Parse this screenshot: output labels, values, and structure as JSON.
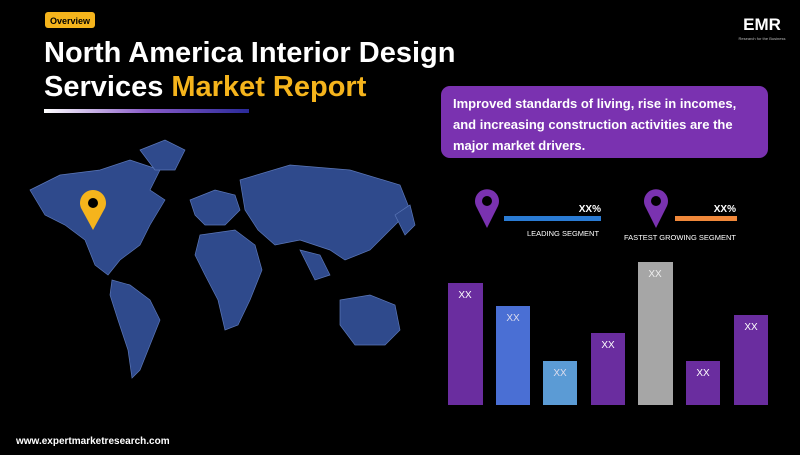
{
  "header": {
    "badge": "Overview",
    "title_line1": "North America Interior Design",
    "title_line2_white": "Services",
    "title_line2_highlight": "Market Report"
  },
  "logo": {
    "text": "EMR",
    "tagline": "Research for the Business"
  },
  "callout": {
    "lines": [
      "Improved standards of living, rise in incomes,",
      "and increasing construction activities are the",
      "major market drivers."
    ]
  },
  "segments": [
    {
      "value": "XX%",
      "label": "LEADING SEGMENT"
    },
    {
      "value": "XX%",
      "label": "FASTEST GROWING SEGMENT"
    }
  ],
  "bars": [
    "XX",
    "XX",
    "XX",
    "XX",
    "XX",
    "XX",
    "XX"
  ],
  "footer": {
    "website": "www.expertmarketresearch.com"
  }
}
